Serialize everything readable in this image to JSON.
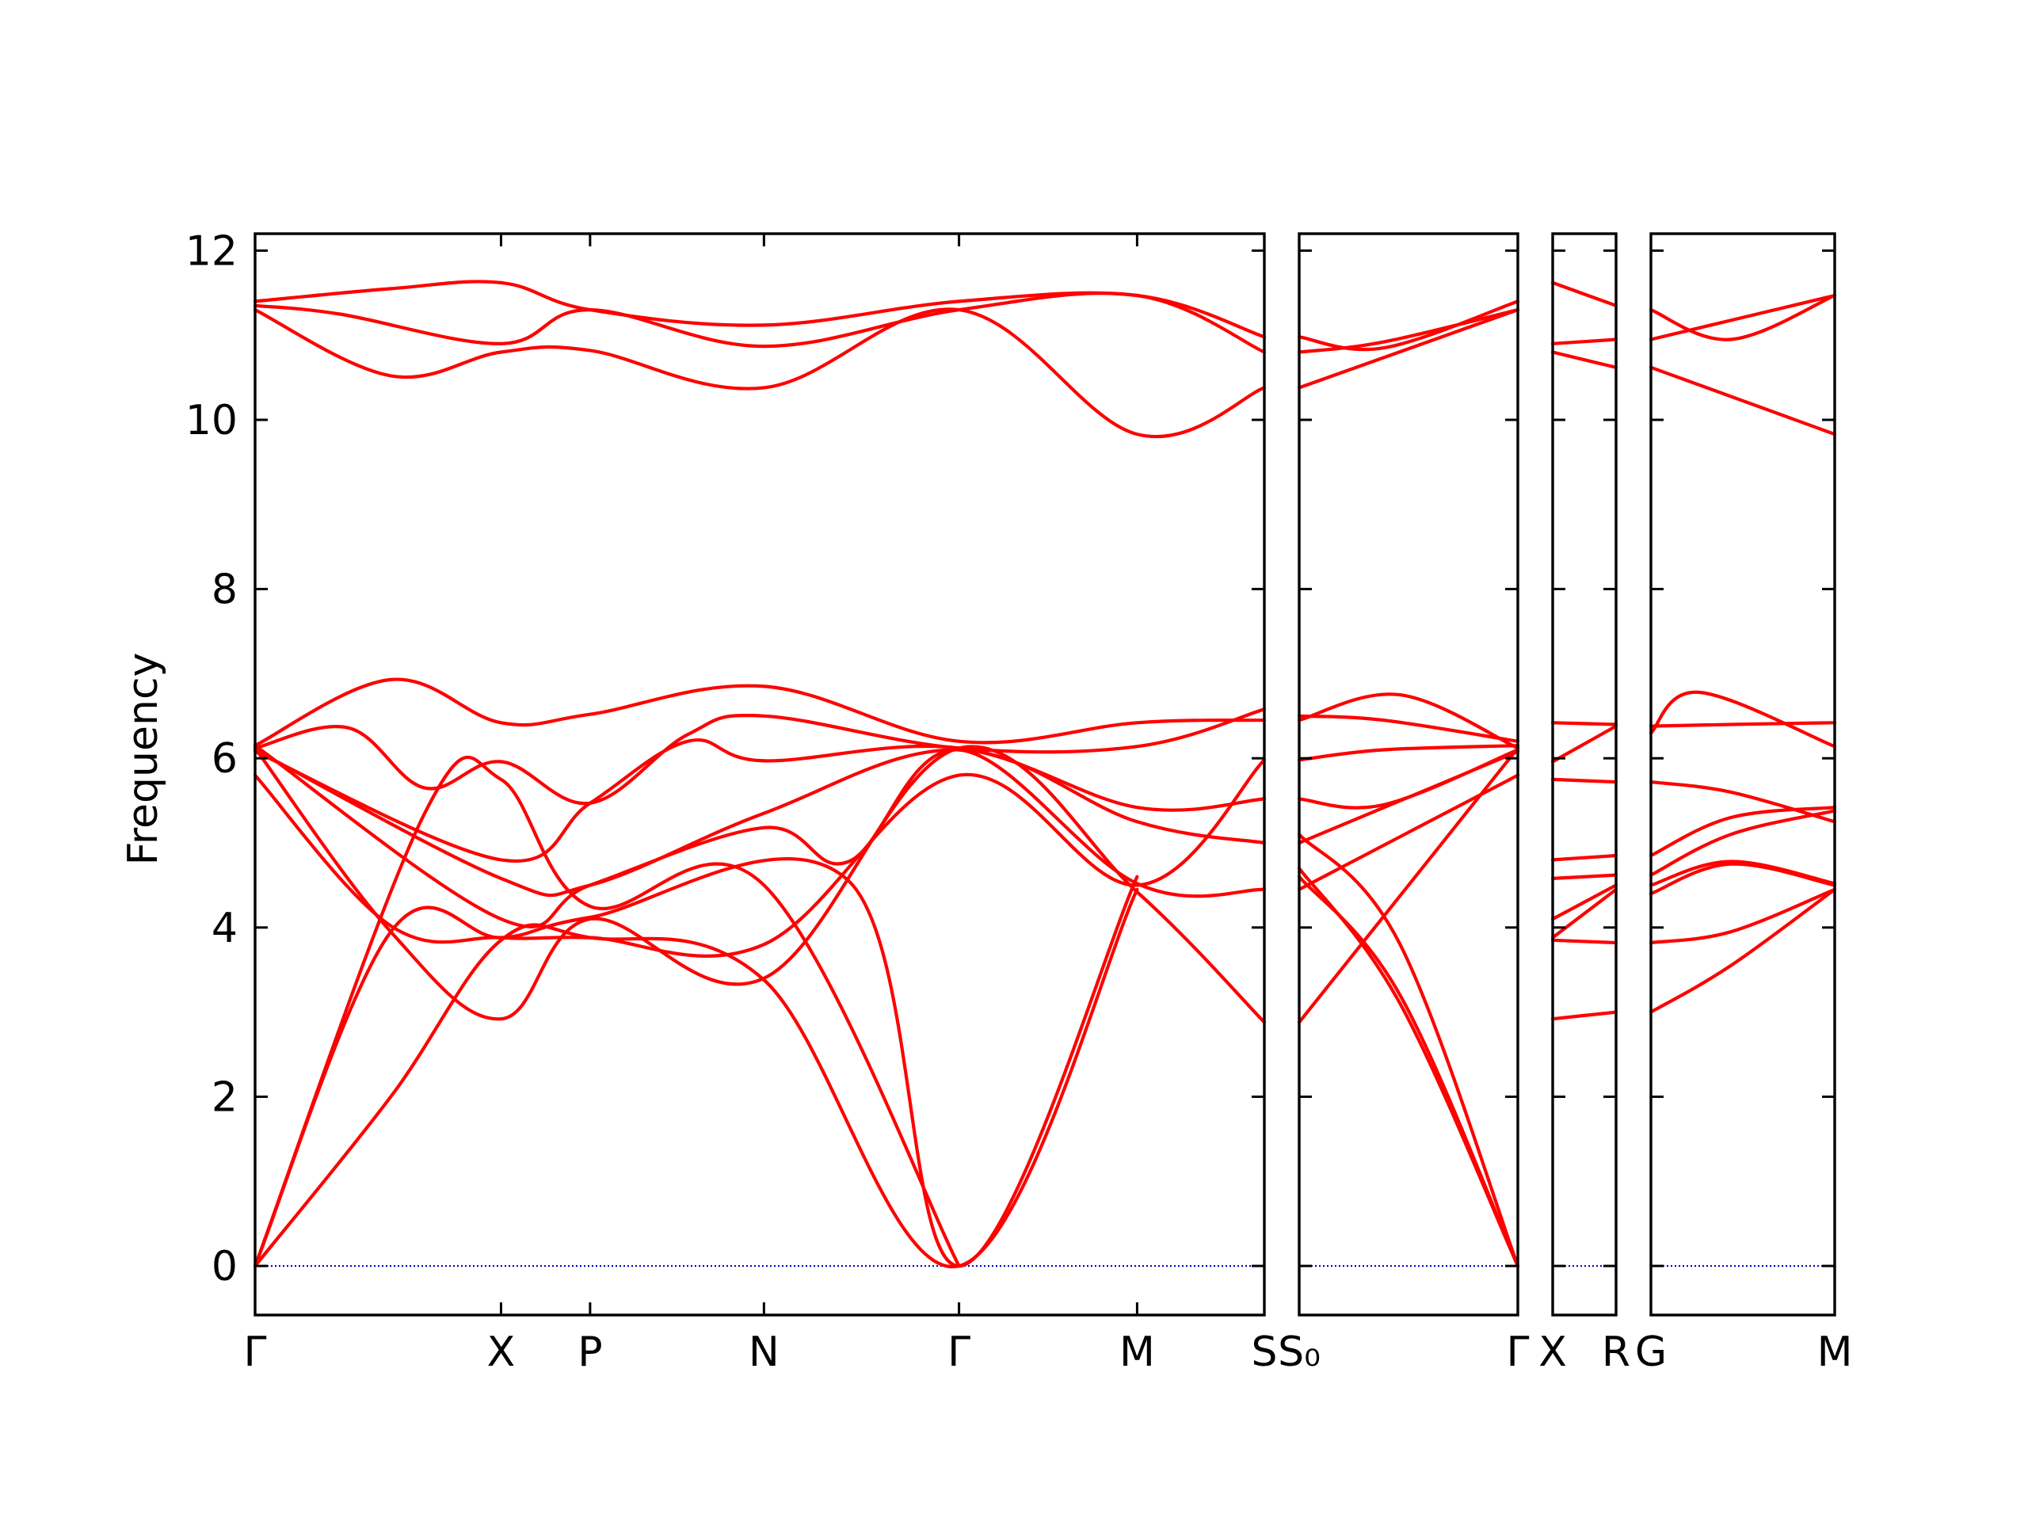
{
  "chart_data": {
    "type": "line",
    "ylabel": "Frequency",
    "xlabel": "",
    "ylim": [
      -0.58,
      12.2
    ],
    "y_ticks": [
      0,
      2,
      4,
      6,
      8,
      10,
      12
    ],
    "grid": false,
    "zero_line_color": "#0000cc",
    "band_color": "#ff0000",
    "panels": [
      {
        "labels": [
          "Γ",
          "X",
          "P",
          "N",
          "Γ",
          "M",
          "S"
        ],
        "label_pos": [
          0,
          2.9,
          3.95,
          6,
          8.3,
          10.4,
          11.9
        ],
        "xlim": [
          0,
          11.9
        ],
        "bands": [
          {
            "x": [
              0,
              1.6,
              2.9,
              3.95,
              6,
              8.3,
              10.4,
              11.9
            ],
            "y": [
              11.4,
              11.55,
              11.62,
              11.3,
              11.12,
              11.4,
              11.47,
              10.98
            ]
          },
          {
            "x": [
              0,
              1.0,
              2.9,
              3.95,
              6,
              8.3,
              10.4,
              11.9
            ],
            "y": [
              11.35,
              11.25,
              10.9,
              11.3,
              10.87,
              11.3,
              11.47,
              10.8
            ]
          },
          {
            "x": [
              0,
              1.6,
              2.9,
              3.95,
              6,
              8.3,
              10.4,
              11.9
            ],
            "y": [
              11.3,
              10.52,
              10.8,
              10.82,
              10.38,
              11.3,
              9.83,
              10.38
            ]
          },
          {
            "x": [
              0,
              1.6,
              2.9,
              3.95,
              6,
              8.3,
              10.4,
              11.9
            ],
            "y": [
              6.15,
              6.93,
              6.42,
              6.52,
              6.85,
              6.2,
              6.42,
              6.45
            ]
          },
          {
            "x": [
              0,
              1.1,
              2.0,
              2.9,
              3.95,
              5.1,
              6,
              8.3,
              10.4,
              11.9
            ],
            "y": [
              6.12,
              6.36,
              5.65,
              5.96,
              5.47,
              6.28,
              6.5,
              6.12,
              6.14,
              6.58
            ]
          },
          {
            "x": [
              0,
              2.9,
              3.95,
              5.1,
              6,
              8.3,
              10.4,
              11.9
            ],
            "y": [
              6.08,
              4.8,
              5.47,
              6.2,
              5.97,
              6.12,
              5.42,
              5.52
            ]
          },
          {
            "x": [
              0,
              2.9,
              3.95,
              6,
              8.3,
              10.4,
              11.9
            ],
            "y": [
              6.1,
              4.58,
              4.5,
              5.35,
              6.1,
              5.25,
              5.0
            ]
          },
          {
            "x": [
              0,
              2.9,
              3.95,
              6,
              7.0,
              8.3,
              10.4,
              11.9
            ],
            "y": [
              6.15,
              4.1,
              4.5,
              5.18,
              4.78,
              6.1,
              4.52,
              4.45
            ]
          },
          {
            "x": [
              0,
              1.6,
              2.9,
              3.95,
              6,
              8.3,
              10.4,
              11.9
            ],
            "y": [
              5.8,
              4.02,
              3.88,
              3.88,
              3.8,
              5.8,
              4.5,
              5.98
            ]
          },
          {
            "x": [
              0,
              1.6,
              2.9,
              3.95,
              6,
              8.3,
              10.4,
              11.9
            ],
            "y": [
              6.12,
              3.95,
              2.92,
              4.1,
              3.4,
              6.12,
              4.42,
              2.88
            ]
          },
          {
            "x": [
              0,
              2.0,
              2.9,
              3.95,
              6,
              8.3
            ],
            "y": [
              0,
              5.35,
              5.75,
              4.25,
              4.5,
              0
            ]
          },
          {
            "x": [
              0,
              1.6,
              2.9,
              3.95,
              7.0,
              8.3,
              10.4
            ],
            "y": [
              0,
              3.95,
              3.88,
              4.12,
              4.55,
              0,
              4.6
            ]
          },
          {
            "x": [
              0,
              1.6,
              2.9,
              3.95,
              6,
              8.3,
              10.4
            ],
            "y": [
              0,
              2.0,
              3.85,
              3.88,
              3.38,
              0,
              4.45
            ]
          }
        ]
      },
      {
        "labels": [
          "S₀",
          "Γ"
        ],
        "label_pos": [
          0,
          2.6
        ],
        "xlim": [
          0,
          2.6
        ],
        "bands": [
          {
            "x": [
              0,
              1.0,
              2.6
            ],
            "y": [
              10.98,
              10.85,
              11.4
            ]
          },
          {
            "x": [
              0,
              1.0,
              2.6
            ],
            "y": [
              10.8,
              10.92,
              11.3
            ]
          },
          {
            "x": [
              0,
              2.6
            ],
            "y": [
              10.38,
              11.3
            ]
          },
          {
            "x": [
              0,
              1.2,
              2.6
            ],
            "y": [
              6.45,
              6.75,
              6.12
            ]
          },
          {
            "x": [
              0,
              1.0,
              2.6
            ],
            "y": [
              6.5,
              6.45,
              6.2
            ]
          },
          {
            "x": [
              0,
              1.0,
              2.6
            ],
            "y": [
              5.98,
              6.1,
              6.15
            ]
          },
          {
            "x": [
              0,
              1.0,
              2.6
            ],
            "y": [
              5.52,
              5.45,
              6.1
            ]
          },
          {
            "x": [
              0,
              2.6
            ],
            "y": [
              5.0,
              6.08
            ]
          },
          {
            "x": [
              0,
              2.6
            ],
            "y": [
              4.45,
              5.8
            ]
          },
          {
            "x": [
              0,
              2.6
            ],
            "y": [
              2.88,
              6.12
            ]
          },
          {
            "x": [
              0,
              1.2,
              2.6
            ],
            "y": [
              5.1,
              3.8,
              0
            ]
          },
          {
            "x": [
              0,
              1.2,
              2.6
            ],
            "y": [
              4.6,
              3.2,
              0
            ]
          },
          {
            "x": [
              0,
              1.2,
              2.6
            ],
            "y": [
              4.7,
              3.1,
              0
            ]
          }
        ]
      },
      {
        "labels": [
          "X",
          "R"
        ],
        "label_pos": [
          0,
          0.8
        ],
        "xlim": [
          0,
          0.8
        ],
        "bands": [
          {
            "x": [
              0,
              0.8
            ],
            "y": [
              11.62,
              11.35
            ]
          },
          {
            "x": [
              0,
              0.8
            ],
            "y": [
              10.9,
              10.95
            ]
          },
          {
            "x": [
              0,
              0.8
            ],
            "y": [
              10.8,
              10.62
            ]
          },
          {
            "x": [
              0,
              0.8
            ],
            "y": [
              6.42,
              6.4
            ]
          },
          {
            "x": [
              0,
              0.8
            ],
            "y": [
              5.96,
              6.38
            ]
          },
          {
            "x": [
              0,
              0.8
            ],
            "y": [
              5.75,
              5.72
            ]
          },
          {
            "x": [
              0,
              0.8
            ],
            "y": [
              4.8,
              4.85
            ]
          },
          {
            "x": [
              0,
              0.8
            ],
            "y": [
              4.58,
              4.62
            ]
          },
          {
            "x": [
              0,
              0.8
            ],
            "y": [
              4.1,
              4.5
            ]
          },
          {
            "x": [
              0,
              0.8
            ],
            "y": [
              3.88,
              4.45
            ]
          },
          {
            "x": [
              0,
              0.8
            ],
            "y": [
              3.85,
              3.82
            ]
          },
          {
            "x": [
              0,
              0.8
            ],
            "y": [
              2.92,
              3.0
            ]
          }
        ]
      },
      {
        "labels": [
          "G",
          "M"
        ],
        "label_pos": [
          0,
          2.3
        ],
        "xlim": [
          0,
          2.3
        ],
        "bands": [
          {
            "x": [
              0,
              1.0,
              2.3
            ],
            "y": [
              11.3,
              10.95,
              11.47
            ]
          },
          {
            "x": [
              0,
              2.3
            ],
            "y": [
              10.95,
              11.47
            ]
          },
          {
            "x": [
              0,
              2.3
            ],
            "y": [
              10.62,
              9.83
            ]
          },
          {
            "x": [
              0,
              0.6,
              2.3
            ],
            "y": [
              6.3,
              6.78,
              6.14
            ]
          },
          {
            "x": [
              0,
              1.0,
              2.3
            ],
            "y": [
              6.38,
              6.4,
              6.42
            ]
          },
          {
            "x": [
              0,
              1.0,
              2.3
            ],
            "y": [
              5.72,
              5.6,
              5.25
            ]
          },
          {
            "x": [
              0,
              1.0,
              2.3
            ],
            "y": [
              4.85,
              5.3,
              5.42
            ]
          },
          {
            "x": [
              0,
              1.0,
              2.3
            ],
            "y": [
              4.62,
              5.1,
              5.38
            ]
          },
          {
            "x": [
              0,
              1.0,
              2.3
            ],
            "y": [
              4.5,
              4.78,
              4.52
            ]
          },
          {
            "x": [
              0,
              1.0,
              2.3
            ],
            "y": [
              4.4,
              4.75,
              4.5
            ]
          },
          {
            "x": [
              0,
              1.0,
              2.3
            ],
            "y": [
              3.82,
              3.95,
              4.45
            ]
          },
          {
            "x": [
              0,
              1.0,
              2.3
            ],
            "y": [
              3.0,
              3.55,
              4.45
            ]
          }
        ]
      }
    ]
  }
}
